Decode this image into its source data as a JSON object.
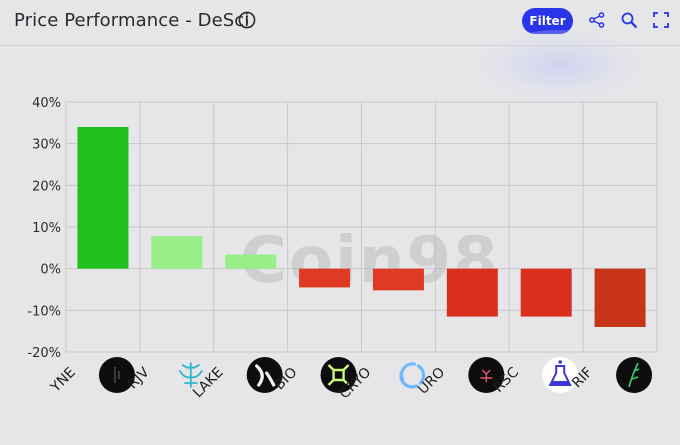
{
  "header": {
    "title": "Price Performance - DeSci",
    "filter_label": "Filter"
  },
  "icons": {
    "info": "info-circle-icon",
    "share": "share-nodes-icon",
    "zoom": "magnifier-icon",
    "expand": "expand-icon"
  },
  "watermark": "Coin98",
  "colors": {
    "strong_green": "#22c01d",
    "light_green": "#98ef8a",
    "red": "#e03a24",
    "dark_red": "#c83418",
    "grid": "#c8c8cc",
    "filter": "#2a34e8"
  },
  "chart_data": {
    "type": "bar",
    "title": "Price Performance - DeSci",
    "xlabel": "",
    "ylabel": "",
    "ylim": [
      -20,
      40
    ],
    "yticks": [
      "40%",
      "30%",
      "20%",
      "10%",
      "0%",
      "-10%",
      "-20%"
    ],
    "ytick_values": [
      40,
      30,
      20,
      10,
      0,
      -10,
      -20
    ],
    "grid": true,
    "categories": [
      "YNE",
      "RJV",
      "LAKE",
      "BIO",
      "CRYO",
      "URO",
      "RSC",
      "RIF"
    ],
    "values": [
      34,
      7.8,
      3.4,
      -4.5,
      -5.2,
      -11.5,
      -11.5,
      -14
    ],
    "bar_colors": [
      "#22c01d",
      "#98ef8a",
      "#98ef8a",
      "#e03a24",
      "#e03a24",
      "#d8301c",
      "#d8301c",
      "#c83418"
    ],
    "token_icons": [
      "yne-token-icon",
      "rjv-token-icon",
      "lake-token-icon",
      "bio-token-icon",
      "cryo-token-icon",
      "uro-token-icon",
      "rsc-token-icon",
      "rif-token-icon"
    ]
  }
}
